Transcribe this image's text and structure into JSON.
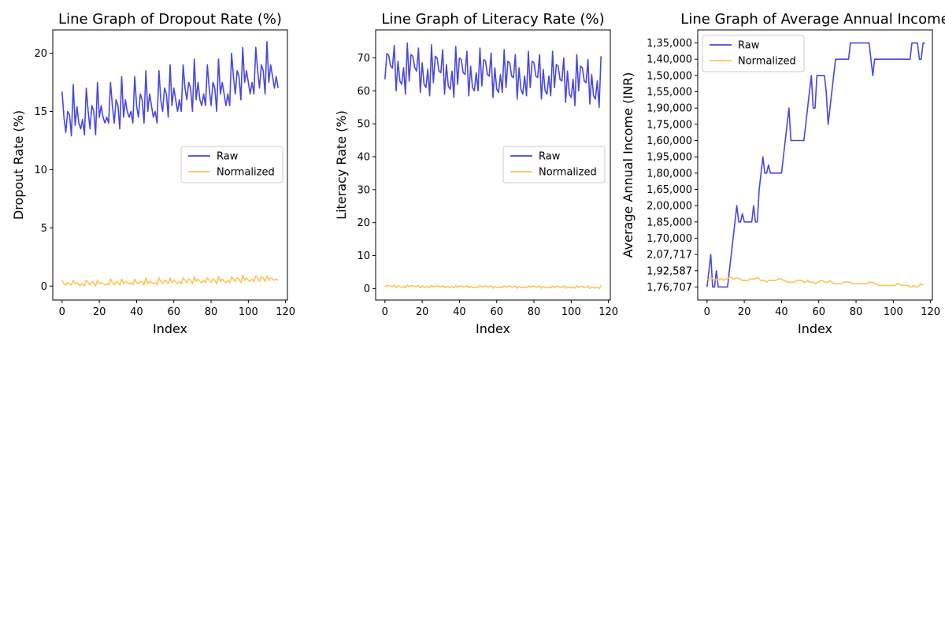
{
  "chart_data": [
    {
      "type": "line",
      "title": "Line Graph of Dropout Rate (%)",
      "xlabel": "Index",
      "ylabel": "Dropout Rate (%)",
      "xlim": [
        -5,
        121
      ],
      "ylim": [
        -1.2,
        22
      ],
      "xticks": [
        "0",
        "20",
        "40",
        "60",
        "80",
        "100",
        "120"
      ],
      "yticks": [
        "0",
        "5",
        "10",
        "15",
        "20"
      ],
      "legend_position": "center-right",
      "series": [
        {
          "name": "Raw",
          "color": "#3333dd",
          "values": [
            16.7,
            14.5,
            13.2,
            15.0,
            14.7,
            12.9,
            17.3,
            13.8,
            15.4,
            14.0,
            13.5,
            14.3,
            13.0,
            17.0,
            15.0,
            13.5,
            15.5,
            15.0,
            13.0,
            17.5,
            14.5,
            15.5,
            14.5,
            14.0,
            14.5,
            14.0,
            17.5,
            15.5,
            14.0,
            16.0,
            15.5,
            13.5,
            18.0,
            14.5,
            16.0,
            15.0,
            14.5,
            15.0,
            14.0,
            18.0,
            15.5,
            14.5,
            16.5,
            16.0,
            14.0,
            18.5,
            15.0,
            16.5,
            15.5,
            14.5,
            15.0,
            14.0,
            18.5,
            16.0,
            15.0,
            17.0,
            16.5,
            14.5,
            19.0,
            15.5,
            17.0,
            16.0,
            15.0,
            16.0,
            15.0,
            19.0,
            17.0,
            16.0,
            17.5,
            17.0,
            15.0,
            19.5,
            16.0,
            17.5,
            16.0,
            15.5,
            16.5,
            15.5,
            19.0,
            17.0,
            15.5,
            17.5,
            17.0,
            15.0,
            19.5,
            16.5,
            17.5,
            16.5,
            15.5,
            16.5,
            15.5,
            20.0,
            18.0,
            16.5,
            18.5,
            18.0,
            16.0,
            20.5,
            17.5,
            18.5,
            17.5,
            16.5,
            17.5,
            16.5,
            20.5,
            18.5,
            17.0,
            19.0,
            18.5,
            16.5,
            21.0,
            17.5,
            19.0,
            18.0,
            17.0,
            18.0,
            17.0
          ]
        },
        {
          "name": "Normalized",
          "color": "#ffbb44",
          "values": [
            0.5,
            0.2,
            0.1,
            0.3,
            0.2,
            0.1,
            0.5,
            0.2,
            0.3,
            0.1,
            0.1,
            0.2,
            0.0,
            0.5,
            0.3,
            0.1,
            0.4,
            0.3,
            0.0,
            0.5,
            0.2,
            0.3,
            0.2,
            0.1,
            0.2,
            0.1,
            0.6,
            0.3,
            0.1,
            0.4,
            0.3,
            0.1,
            0.6,
            0.2,
            0.4,
            0.3,
            0.2,
            0.3,
            0.1,
            0.6,
            0.3,
            0.2,
            0.4,
            0.4,
            0.1,
            0.7,
            0.2,
            0.4,
            0.3,
            0.2,
            0.3,
            0.1,
            0.7,
            0.4,
            0.2,
            0.5,
            0.4,
            0.2,
            0.7,
            0.3,
            0.5,
            0.4,
            0.2,
            0.4,
            0.2,
            0.7,
            0.5,
            0.3,
            0.6,
            0.5,
            0.2,
            0.8,
            0.4,
            0.6,
            0.4,
            0.3,
            0.5,
            0.3,
            0.7,
            0.5,
            0.3,
            0.6,
            0.5,
            0.2,
            0.8,
            0.4,
            0.6,
            0.4,
            0.3,
            0.5,
            0.3,
            0.8,
            0.6,
            0.4,
            0.7,
            0.6,
            0.3,
            0.9,
            0.5,
            0.7,
            0.5,
            0.4,
            0.6,
            0.4,
            0.9,
            0.7,
            0.4,
            0.8,
            0.7,
            0.4,
            0.9,
            0.5,
            0.7,
            0.6,
            0.5,
            0.6,
            0.5
          ]
        }
      ]
    },
    {
      "type": "line",
      "title": "Line Graph of Literacy Rate (%)",
      "xlabel": "Index",
      "ylabel": "Literacy Rate (%)",
      "xlim": [
        -5,
        121
      ],
      "ylim": [
        -3.5,
        78.5
      ],
      "xticks": [
        "0",
        "20",
        "40",
        "60",
        "80",
        "100",
        "120"
      ],
      "yticks": [
        "0",
        "10",
        "20",
        "30",
        "40",
        "50",
        "60",
        "70"
      ],
      "legend_position": "center-right",
      "series": [
        {
          "name": "Raw",
          "color": "#3333dd",
          "values": [
            63.5,
            71.3,
            70.8,
            67.6,
            66.9,
            73.8,
            60.0,
            69.0,
            63.0,
            62.0,
            67.0,
            59.0,
            74.5,
            63.0,
            71.0,
            70.5,
            67.0,
            66.0,
            73.0,
            59.5,
            68.5,
            62.0,
            61.0,
            66.5,
            58.5,
            74.0,
            62.5,
            70.5,
            70.0,
            66.0,
            65.5,
            72.5,
            59.0,
            68.0,
            61.5,
            60.5,
            66.0,
            58.0,
            73.5,
            62.0,
            70.0,
            69.5,
            65.5,
            65.0,
            72.0,
            58.5,
            67.5,
            61.0,
            60.0,
            65.5,
            60.0,
            73.0,
            61.5,
            69.5,
            69.0,
            65.0,
            64.5,
            71.5,
            58.0,
            67.0,
            60.5,
            59.5,
            65.0,
            59.5,
            72.5,
            61.0,
            69.0,
            68.5,
            64.5,
            64.0,
            71.0,
            57.5,
            67.0,
            60.5,
            59.0,
            64.5,
            58.5,
            72.0,
            61.0,
            69.0,
            68.5,
            64.5,
            64.0,
            71.0,
            57.5,
            66.5,
            60.0,
            59.0,
            64.5,
            58.5,
            72.0,
            61.0,
            68.0,
            67.5,
            63.5,
            63.0,
            70.0,
            56.5,
            66.0,
            59.0,
            58.0,
            63.5,
            55.5,
            71.0,
            60.0,
            67.5,
            67.0,
            63.0,
            62.5,
            69.5,
            56.0,
            65.0,
            58.5,
            57.5,
            63.0,
            55.0,
            70.5
          ]
        },
        {
          "name": "Normalized",
          "color": "#ffbb44",
          "values": [
            0.6,
            0.9,
            0.9,
            0.7,
            0.6,
            1.0,
            0.3,
            0.8,
            0.5,
            0.4,
            0.7,
            0.2,
            1.0,
            0.5,
            0.9,
            0.8,
            0.6,
            0.6,
            0.9,
            0.2,
            0.8,
            0.4,
            0.4,
            0.6,
            0.2,
            1.0,
            0.4,
            0.8,
            0.8,
            0.6,
            0.5,
            0.9,
            0.2,
            0.7,
            0.4,
            0.3,
            0.6,
            0.2,
            0.9,
            0.4,
            0.8,
            0.7,
            0.5,
            0.5,
            0.9,
            0.2,
            0.7,
            0.3,
            0.3,
            0.5,
            0.3,
            0.9,
            0.4,
            0.8,
            0.7,
            0.5,
            0.5,
            0.8,
            0.1,
            0.6,
            0.3,
            0.3,
            0.5,
            0.2,
            0.9,
            0.3,
            0.7,
            0.7,
            0.5,
            0.4,
            0.8,
            0.1,
            0.6,
            0.3,
            0.2,
            0.5,
            0.2,
            0.9,
            0.3,
            0.7,
            0.7,
            0.5,
            0.4,
            0.8,
            0.1,
            0.6,
            0.3,
            0.2,
            0.5,
            0.2,
            0.8,
            0.3,
            0.7,
            0.6,
            0.4,
            0.4,
            0.8,
            0.1,
            0.5,
            0.3,
            0.2,
            0.4,
            0.1,
            0.8,
            0.3,
            0.6,
            0.6,
            0.4,
            0.4,
            0.7,
            0.0,
            0.5,
            0.2,
            0.2,
            0.4,
            0.0,
            0.9
          ]
        }
      ]
    },
    {
      "type": "line",
      "title": "Line Graph of Average Annual Income",
      "xlabel": "Index",
      "ylabel": "Average Annual Income (INR)",
      "xlim": [
        -5,
        121
      ],
      "y_scale": "categorical",
      "ylim": [
        -0.8,
        15.8
      ],
      "xticks": [
        "0",
        "20",
        "40",
        "60",
        "80",
        "100",
        "120"
      ],
      "yticks": [
        "1,76,707",
        "1,92,587",
        "2,07,717",
        "1,70,000",
        "1,85,000",
        "2,00,000",
        "1,65,000",
        "1,80,000",
        "1,95,000",
        "1,60,000",
        "1,75,000",
        "1,90,000",
        "1,55,000",
        "1,50,000",
        "1,40,000",
        "1,35,000"
      ],
      "legend_position": "top-left",
      "series": [
        {
          "name": "Raw",
          "color": "#3333dd",
          "values": [
            0,
            1,
            2,
            0,
            0,
            1,
            0,
            0,
            0,
            0,
            0,
            0,
            1,
            2,
            3,
            4,
            5,
            4,
            4,
            4.5,
            4,
            4,
            4,
            4,
            4,
            5,
            4,
            4,
            6,
            7,
            8,
            7,
            7,
            7.5,
            7,
            7,
            7,
            7,
            7,
            7,
            7,
            8,
            9,
            10,
            11,
            9,
            9,
            9,
            9,
            9,
            9,
            9,
            9,
            10,
            11,
            12,
            13,
            11,
            11,
            13,
            13,
            13,
            13,
            13,
            12,
            10,
            11,
            12,
            13,
            14,
            14,
            14,
            14,
            14,
            14,
            14,
            14,
            15,
            15,
            15,
            15,
            15,
            15,
            15,
            15,
            15,
            15,
            15,
            14,
            13,
            14,
            14,
            14,
            14,
            14,
            14,
            14,
            14,
            14,
            14,
            14,
            14,
            14,
            14,
            14,
            14,
            14,
            14,
            14,
            14,
            15,
            15,
            15,
            15,
            14,
            14,
            15,
            15
          ]
        },
        {
          "name": "Normalized",
          "color": "#ffbb44",
          "values": [
            0.5,
            0.4,
            0.6,
            0.5,
            0.4,
            0.5,
            0.4,
            0.5,
            0.5,
            0.4,
            0.5,
            0.5,
            0.6,
            0.6,
            0.5,
            0.5,
            0.6,
            0.5,
            0.5,
            0.4,
            0.4,
            0.4,
            0.4,
            0.5,
            0.5,
            0.5,
            0.5,
            0.6,
            0.5,
            0.4,
            0.4,
            0.4,
            0.3,
            0.4,
            0.4,
            0.4,
            0.4,
            0.4,
            0.5,
            0.5,
            0.5,
            0.4,
            0.4,
            0.3,
            0.3,
            0.3,
            0.3,
            0.3,
            0.4,
            0.4,
            0.4,
            0.4,
            0.3,
            0.3,
            0.4,
            0.3,
            0.3,
            0.3,
            0.2,
            0.3,
            0.3,
            0.4,
            0.4,
            0.3,
            0.3,
            0.3,
            0.4,
            0.3,
            0.2,
            0.2,
            0.2,
            0.2,
            0.2,
            0.3,
            0.3,
            0.3,
            0.3,
            0.3,
            0.2,
            0.2,
            0.2,
            0.2,
            0.2,
            0.2,
            0.2,
            0.2,
            0.2,
            0.3,
            0.3,
            0.3,
            0.2,
            0.2,
            0.1,
            0.1,
            0.1,
            0.1,
            0.1,
            0.1,
            0.1,
            0.1,
            0.1,
            0.1,
            0.2,
            0.2,
            0.1,
            0.1,
            0.1,
            0.1,
            0.1,
            0.0,
            0.0,
            0.1,
            0.0,
            0.0,
            0.1,
            0.2,
            0.1
          ]
        }
      ]
    }
  ]
}
